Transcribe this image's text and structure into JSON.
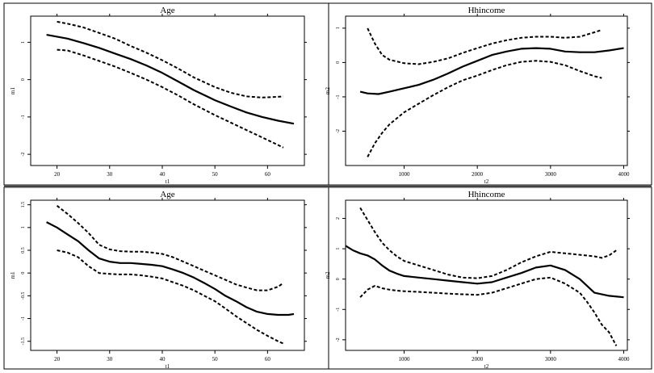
{
  "chart_data": [
    {
      "type": "line",
      "title": "Age",
      "xlabel": "t1",
      "ylabel": "m1",
      "xlim": [
        15,
        67
      ],
      "ylim": [
        -2.3,
        1.7
      ],
      "xticks": [
        20,
        30,
        40,
        50,
        60
      ],
      "yticks": [
        -2,
        -1,
        0,
        1
      ],
      "grid": false,
      "series": [
        {
          "style": "solid",
          "x": [
            18,
            20,
            22,
            25,
            28,
            31,
            34,
            37,
            40,
            43,
            46,
            50,
            53,
            56,
            59,
            62,
            65
          ],
          "y": [
            1.2,
            1.15,
            1.1,
            0.98,
            0.85,
            0.7,
            0.55,
            0.38,
            0.18,
            -0.05,
            -0.28,
            -0.55,
            -0.72,
            -0.88,
            -1.0,
            -1.1,
            -1.18
          ]
        },
        {
          "style": "dashed",
          "x": [
            20,
            22,
            25,
            28,
            31,
            34,
            37,
            40,
            43,
            46,
            50,
            53,
            56,
            59,
            62,
            63
          ],
          "y": [
            1.55,
            1.5,
            1.4,
            1.25,
            1.1,
            0.9,
            0.72,
            0.52,
            0.3,
            0.06,
            -0.2,
            -0.35,
            -0.45,
            -0.48,
            -0.46,
            -0.45
          ]
        },
        {
          "style": "dashed",
          "x": [
            20,
            22,
            25,
            28,
            31,
            34,
            37,
            40,
            43,
            46,
            50,
            53,
            56,
            59,
            62,
            63
          ],
          "y": [
            0.8,
            0.78,
            0.65,
            0.5,
            0.35,
            0.18,
            0.0,
            -0.2,
            -0.42,
            -0.66,
            -0.95,
            -1.15,
            -1.35,
            -1.55,
            -1.75,
            -1.82
          ]
        }
      ]
    },
    {
      "type": "line",
      "title": "Hhincome",
      "xlabel": "t2",
      "ylabel": "m2",
      "xlim": [
        200,
        4050
      ],
      "ylim": [
        -3.0,
        1.35
      ],
      "xticks": [
        1000,
        2000,
        3000,
        4000
      ],
      "yticks": [
        -2,
        -1,
        0,
        1
      ],
      "grid": false,
      "series": [
        {
          "style": "solid",
          "x": [
            400,
            500,
            650,
            800,
            1000,
            1200,
            1400,
            1600,
            1800,
            2000,
            2200,
            2400,
            2600,
            2800,
            3000,
            3200,
            3400,
            3600,
            3800,
            4000
          ],
          "y": [
            -0.85,
            -0.9,
            -0.92,
            -0.85,
            -0.75,
            -0.65,
            -0.5,
            -0.32,
            -0.12,
            0.05,
            0.22,
            0.32,
            0.4,
            0.42,
            0.4,
            0.32,
            0.3,
            0.3,
            0.35,
            0.42
          ]
        },
        {
          "style": "dashed",
          "x": [
            500,
            600,
            700,
            800,
            1000,
            1200,
            1400,
            1600,
            1800,
            2000,
            2200,
            2400,
            2600,
            2800,
            3000,
            3200,
            3400,
            3600,
            3700
          ],
          "y": [
            1.0,
            0.55,
            0.22,
            0.08,
            -0.02,
            -0.05,
            0.02,
            0.12,
            0.28,
            0.42,
            0.55,
            0.65,
            0.72,
            0.75,
            0.75,
            0.72,
            0.75,
            0.88,
            0.95
          ]
        },
        {
          "style": "dashed",
          "x": [
            500,
            600,
            700,
            800,
            1000,
            1200,
            1400,
            1600,
            1800,
            2000,
            2200,
            2400,
            2600,
            2800,
            3000,
            3200,
            3400,
            3600,
            3700
          ],
          "y": [
            -2.75,
            -2.35,
            -2.05,
            -1.8,
            -1.45,
            -1.2,
            -0.95,
            -0.72,
            -0.52,
            -0.38,
            -0.22,
            -0.08,
            0.02,
            0.05,
            0.02,
            -0.08,
            -0.25,
            -0.4,
            -0.45
          ]
        }
      ]
    },
    {
      "type": "line",
      "title": "Age",
      "xlabel": "t1",
      "ylabel": "m1",
      "xlim": [
        15,
        67
      ],
      "ylim": [
        -1.7,
        1.6
      ],
      "xticks": [
        20,
        30,
        40,
        50,
        60
      ],
      "yticks": [
        -1.5,
        -1,
        -0.5,
        0,
        0.5,
        1,
        1.5
      ],
      "grid": false,
      "series": [
        {
          "style": "solid",
          "x": [
            18,
            20,
            22,
            24,
            26,
            28,
            30,
            32,
            34,
            36,
            38,
            40,
            42,
            44,
            46,
            48,
            50,
            52,
            54,
            56,
            58,
            60,
            62,
            64,
            65
          ],
          "y": [
            1.12,
            1.0,
            0.85,
            0.7,
            0.5,
            0.32,
            0.25,
            0.22,
            0.22,
            0.2,
            0.18,
            0.15,
            0.08,
            0.0,
            -0.1,
            -0.22,
            -0.35,
            -0.5,
            -0.62,
            -0.75,
            -0.85,
            -0.9,
            -0.92,
            -0.92,
            -0.9
          ]
        },
        {
          "style": "dashed",
          "x": [
            20,
            22,
            24,
            26,
            28,
            30,
            32,
            34,
            36,
            38,
            40,
            42,
            44,
            46,
            48,
            50,
            52,
            54,
            56,
            58,
            60,
            62,
            63
          ],
          "y": [
            1.48,
            1.3,
            1.1,
            0.88,
            0.62,
            0.52,
            0.48,
            0.47,
            0.47,
            0.45,
            0.42,
            0.35,
            0.25,
            0.15,
            0.05,
            -0.05,
            -0.15,
            -0.25,
            -0.32,
            -0.38,
            -0.38,
            -0.3,
            -0.22
          ]
        },
        {
          "style": "dashed",
          "x": [
            20,
            22,
            24,
            26,
            28,
            30,
            32,
            34,
            36,
            38,
            40,
            42,
            44,
            46,
            48,
            50,
            52,
            54,
            56,
            58,
            60,
            62,
            63
          ],
          "y": [
            0.5,
            0.45,
            0.35,
            0.15,
            0.0,
            -0.02,
            -0.03,
            -0.03,
            -0.05,
            -0.08,
            -0.12,
            -0.2,
            -0.28,
            -0.38,
            -0.5,
            -0.62,
            -0.78,
            -0.95,
            -1.1,
            -1.25,
            -1.38,
            -1.5,
            -1.55
          ]
        }
      ]
    },
    {
      "type": "line",
      "title": "Hhincome",
      "xlabel": "t2",
      "ylabel": "m2",
      "xlim": [
        200,
        4050
      ],
      "ylim": [
        -2.35,
        2.6
      ],
      "xticks": [
        1000,
        2000,
        3000,
        4000
      ],
      "yticks": [
        -2,
        -1,
        0,
        1,
        2
      ],
      "grid": false,
      "series": [
        {
          "style": "solid",
          "x": [
            200,
            300,
            400,
            500,
            600,
            700,
            800,
            900,
            1000,
            1200,
            1400,
            1600,
            1800,
            2000,
            2200,
            2400,
            2600,
            2800,
            3000,
            3200,
            3400,
            3600,
            3800,
            4000
          ],
          "y": [
            1.1,
            0.95,
            0.85,
            0.78,
            0.65,
            0.45,
            0.28,
            0.18,
            0.1,
            0.05,
            0.0,
            -0.05,
            -0.1,
            -0.15,
            -0.1,
            0.05,
            0.2,
            0.38,
            0.45,
            0.3,
            0.0,
            -0.45,
            -0.55,
            -0.6
          ]
        },
        {
          "style": "dashed",
          "x": [
            400,
            500,
            600,
            700,
            800,
            900,
            1000,
            1200,
            1400,
            1600,
            1800,
            2000,
            2200,
            2400,
            2600,
            2800,
            3000,
            3200,
            3400,
            3600,
            3700,
            3800,
            3900
          ],
          "y": [
            2.35,
            1.95,
            1.55,
            1.2,
            0.95,
            0.75,
            0.6,
            0.45,
            0.3,
            0.15,
            0.05,
            0.03,
            0.1,
            0.3,
            0.55,
            0.75,
            0.9,
            0.85,
            0.8,
            0.75,
            0.7,
            0.78,
            0.95
          ]
        },
        {
          "style": "dashed",
          "x": [
            400,
            500,
            600,
            700,
            800,
            900,
            1000,
            1200,
            1400,
            1600,
            1800,
            2000,
            2200,
            2400,
            2600,
            2800,
            3000,
            3200,
            3400,
            3500,
            3600,
            3700,
            3800,
            3900
          ],
          "y": [
            -0.6,
            -0.35,
            -0.22,
            -0.3,
            -0.35,
            -0.38,
            -0.4,
            -0.42,
            -0.45,
            -0.48,
            -0.5,
            -0.52,
            -0.45,
            -0.3,
            -0.15,
            0.0,
            0.05,
            -0.15,
            -0.45,
            -0.75,
            -1.1,
            -1.5,
            -1.75,
            -2.2
          ]
        }
      ]
    }
  ]
}
